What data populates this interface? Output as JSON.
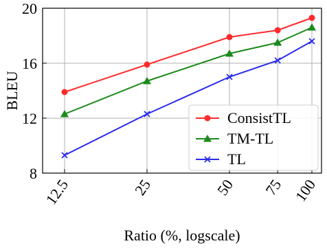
{
  "chart_data": {
    "type": "line",
    "xlabel": "Ratio (%, logscale)",
    "ylabel": "BLEU",
    "x": [
      12.5,
      25,
      50,
      75,
      100
    ],
    "x_tick_labels": [
      "12.5",
      "25",
      "50",
      "75",
      "100"
    ],
    "x_scale": "log",
    "xlim": [
      12.5,
      100
    ],
    "ylim": [
      8,
      20
    ],
    "y_ticks": [
      8,
      12,
      16,
      20
    ],
    "grid": true,
    "legend_position": "bottom-right",
    "series": [
      {
        "name": "ConsistTL",
        "values": [
          13.9,
          15.9,
          17.9,
          18.4,
          19.3
        ],
        "color": "#ff2a2a",
        "marker": "circle"
      },
      {
        "name": "TM-TL",
        "values": [
          12.3,
          14.7,
          16.7,
          17.5,
          18.6
        ],
        "color": "#1a8a1a",
        "marker": "triangle"
      },
      {
        "name": "TL",
        "values": [
          9.3,
          12.3,
          15.0,
          16.2,
          17.6
        ],
        "color": "#2a2aee",
        "marker": "x"
      }
    ]
  }
}
